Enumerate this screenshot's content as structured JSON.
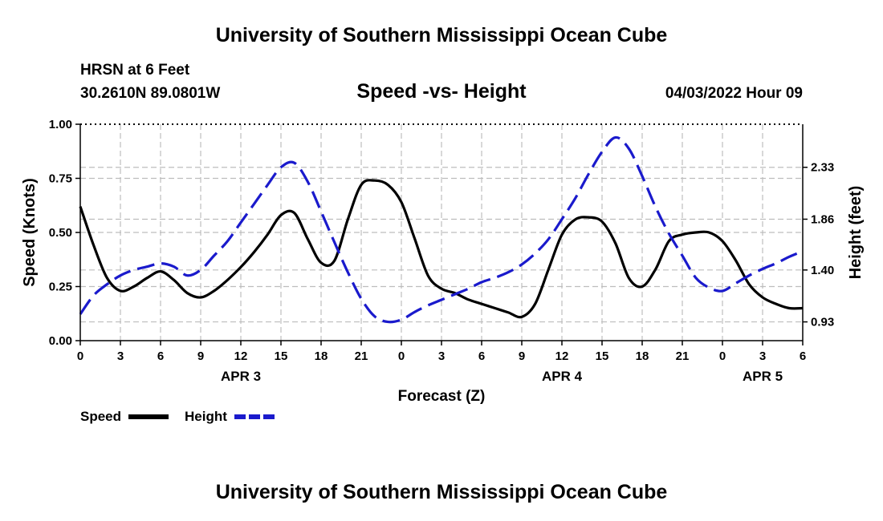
{
  "page": {
    "top_title": "University of Southern Mississippi Ocean Cube",
    "bottom_title": "University of Southern Mississippi Ocean Cube",
    "station": "HRSN at 6 Feet",
    "coordinates": "30.2610N  89.0801W",
    "chart_title": "Speed -vs- Height",
    "datetime": "04/03/2022 Hour 09"
  },
  "chart_data": {
    "type": "line",
    "title": "Speed -vs- Height",
    "xlabel": "Forecast (Z)",
    "ylabel_left": "Speed (Knots)",
    "ylabel_right": "Height (feet)",
    "xlim": [
      0,
      54
    ],
    "ylim_left": [
      0,
      1.0
    ],
    "ylim_right": [
      0.76,
      2.72
    ],
    "x_ticks": [
      {
        "x": 0,
        "label": "0"
      },
      {
        "x": 3,
        "label": "3"
      },
      {
        "x": 6,
        "label": "6"
      },
      {
        "x": 9,
        "label": "9"
      },
      {
        "x": 12,
        "label": "12"
      },
      {
        "x": 15,
        "label": "15"
      },
      {
        "x": 18,
        "label": "18"
      },
      {
        "x": 21,
        "label": "21"
      },
      {
        "x": 24,
        "label": "0"
      },
      {
        "x": 27,
        "label": "3"
      },
      {
        "x": 30,
        "label": "6"
      },
      {
        "x": 33,
        "label": "9"
      },
      {
        "x": 36,
        "label": "12"
      },
      {
        "x": 39,
        "label": "15"
      },
      {
        "x": 42,
        "label": "18"
      },
      {
        "x": 45,
        "label": "21"
      },
      {
        "x": 48,
        "label": "0"
      },
      {
        "x": 51,
        "label": "3"
      },
      {
        "x": 54,
        "label": "6"
      }
    ],
    "date_labels": [
      {
        "x": 12,
        "label": "APR 3"
      },
      {
        "x": 36,
        "label": "APR 4"
      },
      {
        "x": 51,
        "label": "APR 5"
      }
    ],
    "left_ticks": [
      {
        "v": 0.0,
        "label": "0.00"
      },
      {
        "v": 0.25,
        "label": "0.25"
      },
      {
        "v": 0.5,
        "label": "0.50"
      },
      {
        "v": 0.75,
        "label": "0.75"
      },
      {
        "v": 1.0,
        "label": "1.00"
      }
    ],
    "right_ticks": [
      {
        "v": 0.93,
        "label": "0.93"
      },
      {
        "v": 1.4,
        "label": "1.40"
      },
      {
        "v": 1.86,
        "label": "1.86"
      },
      {
        "v": 2.33,
        "label": "2.33"
      }
    ],
    "legend": [
      {
        "name": "Speed",
        "color": "#000000",
        "style": "solid"
      },
      {
        "name": "Height",
        "color": "#1a1acc",
        "style": "dashed"
      }
    ],
    "series": [
      {
        "name": "Speed",
        "axis": "left",
        "color": "#000000",
        "style": "solid",
        "x": [
          0,
          1,
          2,
          3,
          4,
          5,
          6,
          7,
          8,
          9,
          10,
          11,
          12,
          13,
          14,
          15,
          16,
          17,
          18,
          19,
          20,
          21,
          22,
          23,
          24,
          25,
          26,
          27,
          28,
          29,
          30,
          31,
          32,
          33,
          34,
          35,
          36,
          37,
          38,
          39,
          40,
          41,
          42,
          43,
          44,
          45,
          46,
          47,
          48,
          49,
          50,
          51,
          52,
          53,
          54
        ],
        "values": [
          0.62,
          0.44,
          0.29,
          0.23,
          0.25,
          0.29,
          0.32,
          0.28,
          0.22,
          0.2,
          0.23,
          0.28,
          0.34,
          0.41,
          0.49,
          0.58,
          0.59,
          0.47,
          0.36,
          0.37,
          0.56,
          0.72,
          0.74,
          0.72,
          0.64,
          0.47,
          0.3,
          0.24,
          0.22,
          0.19,
          0.17,
          0.15,
          0.13,
          0.11,
          0.17,
          0.33,
          0.49,
          0.56,
          0.57,
          0.55,
          0.45,
          0.29,
          0.25,
          0.33,
          0.46,
          0.49,
          0.5,
          0.5,
          0.46,
          0.37,
          0.26,
          0.2,
          0.17,
          0.15,
          0.15
        ]
      },
      {
        "name": "Height",
        "axis": "right",
        "color": "#1a1acc",
        "style": "dashed",
        "x": [
          0,
          1,
          2,
          3,
          4,
          5,
          6,
          7,
          8,
          9,
          10,
          11,
          12,
          13,
          14,
          15,
          16,
          17,
          18,
          19,
          20,
          21,
          22,
          23,
          24,
          25,
          26,
          27,
          28,
          29,
          30,
          31,
          32,
          33,
          34,
          35,
          36,
          37,
          38,
          39,
          40,
          41,
          42,
          43,
          44,
          45,
          46,
          47,
          48,
          49,
          50,
          51,
          52,
          53,
          54
        ],
        "values": [
          1.0,
          1.17,
          1.27,
          1.35,
          1.4,
          1.43,
          1.46,
          1.43,
          1.35,
          1.4,
          1.53,
          1.66,
          1.83,
          2.0,
          2.17,
          2.33,
          2.37,
          2.2,
          1.93,
          1.65,
          1.38,
          1.14,
          0.98,
          0.93,
          0.95,
          1.02,
          1.08,
          1.13,
          1.18,
          1.23,
          1.29,
          1.33,
          1.38,
          1.45,
          1.55,
          1.68,
          1.86,
          2.05,
          2.27,
          2.47,
          2.6,
          2.5,
          2.25,
          1.97,
          1.73,
          1.53,
          1.33,
          1.24,
          1.21,
          1.28,
          1.35,
          1.41,
          1.46,
          1.52,
          1.57
        ]
      }
    ]
  }
}
